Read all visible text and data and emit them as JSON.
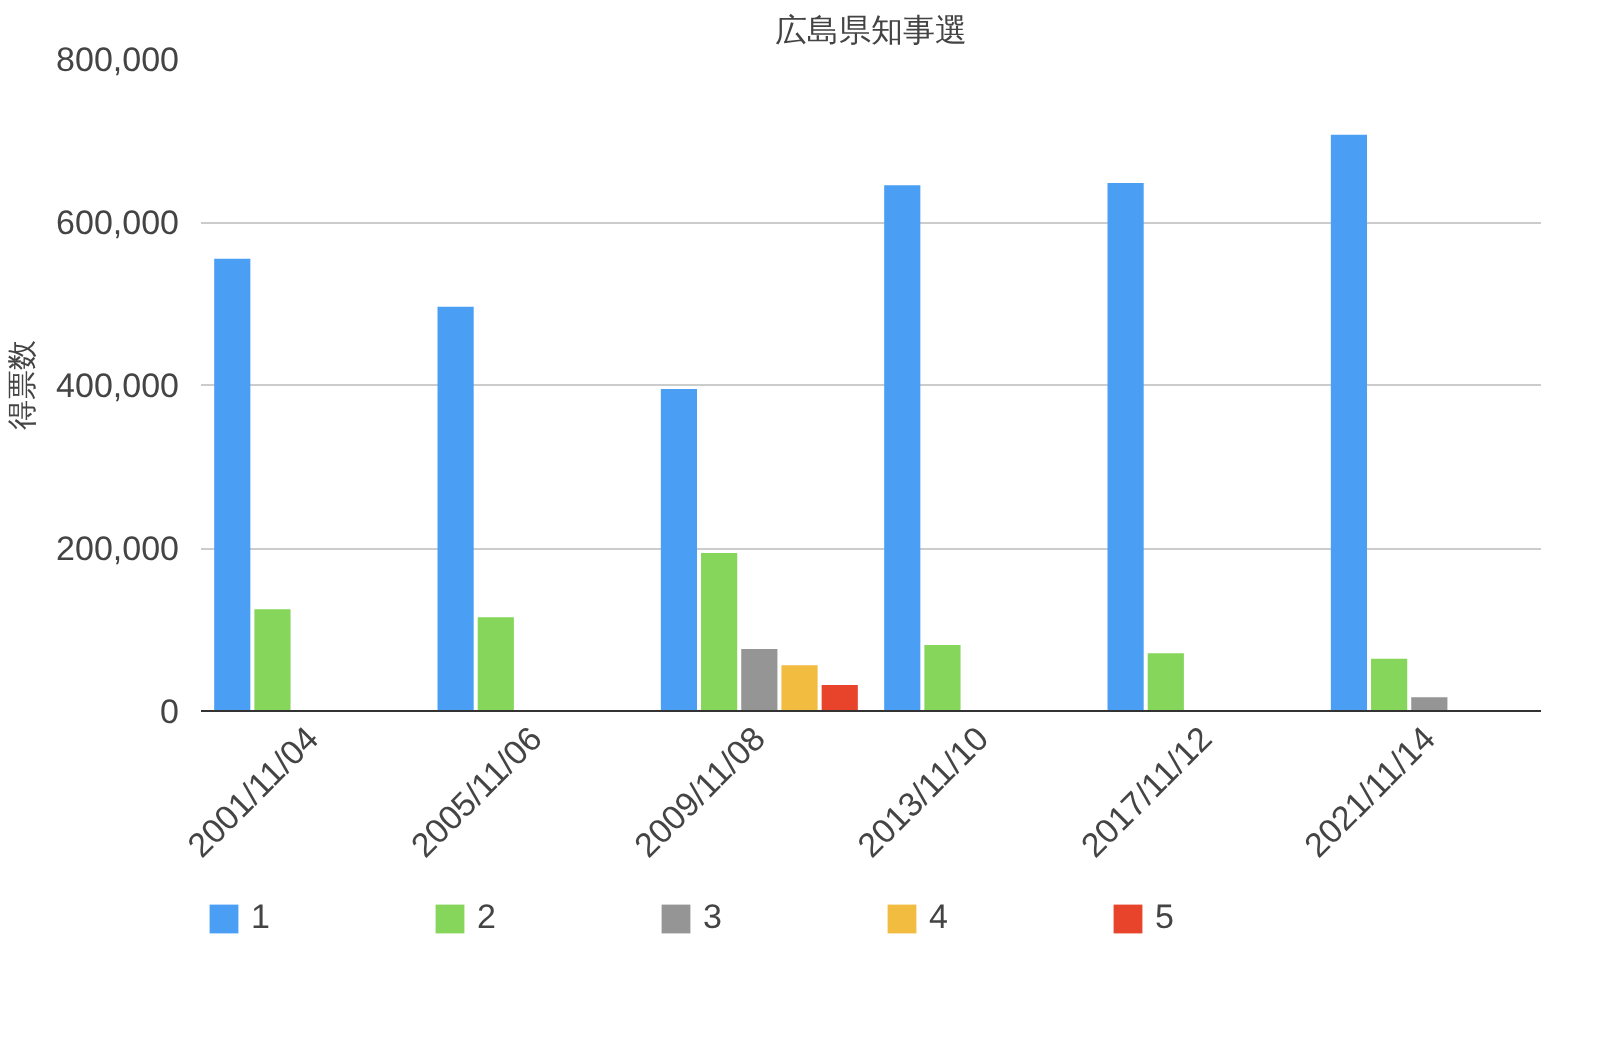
{
  "chart_data": {
    "type": "bar",
    "title": "広島県知事選",
    "ylabel": "得票数",
    "categories": [
      "2001/11/04",
      "2005/11/06",
      "2009/11/08",
      "2013/11/10",
      "2017/11/12",
      "2021/11/14"
    ],
    "series": [
      {
        "name": "1",
        "color": "#4a9ff5",
        "values": [
          555000,
          496000,
          395000,
          645000,
          648000,
          707000
        ]
      },
      {
        "name": "2",
        "color": "#85d65a",
        "values": [
          125000,
          115000,
          194000,
          81000,
          71000,
          64000
        ]
      },
      {
        "name": "3",
        "color": "#959595",
        "values": [
          null,
          null,
          76000,
          null,
          null,
          17000
        ]
      },
      {
        "name": "4",
        "color": "#f2bc41",
        "values": [
          null,
          null,
          56000,
          null,
          null,
          null
        ]
      },
      {
        "name": "5",
        "color": "#e8432b",
        "values": [
          null,
          null,
          32000,
          null,
          null,
          null
        ]
      }
    ],
    "ylim": [
      0,
      800000
    ],
    "yticks": [
      {
        "value": 0,
        "label": "0"
      },
      {
        "value": 200000,
        "label": "200,000"
      },
      {
        "value": 400000,
        "label": "400,000"
      },
      {
        "value": 600000,
        "label": "600,000"
      },
      {
        "value": 800000,
        "label": "800,000"
      }
    ],
    "grid": "y",
    "legend": "bottom"
  }
}
